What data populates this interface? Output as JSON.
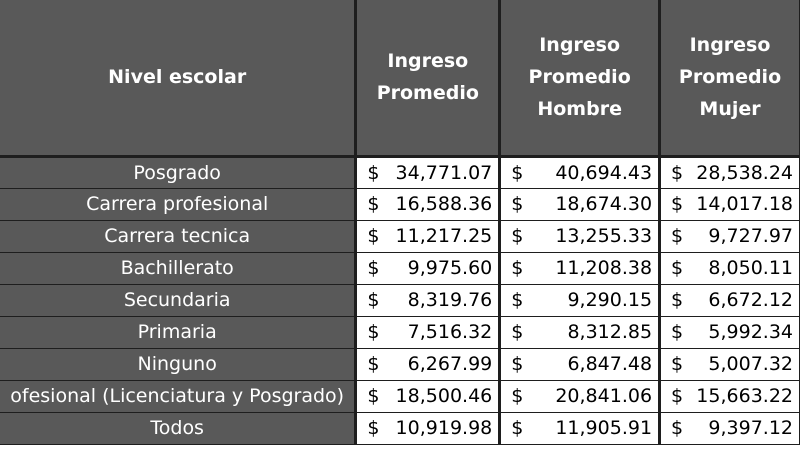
{
  "table": {
    "headers": [
      "Nivel escolar",
      "Ingreso\nPromedio",
      "Ingreso\nPromedio\nHombre",
      "Ingreso\nPromedio\nMujer"
    ],
    "currency_symbol": "$",
    "rows": [
      {
        "level": "Posgrado",
        "avg": "34,771.07",
        "men": "40,694.43",
        "women": "28,538.24"
      },
      {
        "level": "Carrera profesional",
        "avg": "16,588.36",
        "men": "18,674.30",
        "women": "14,017.18"
      },
      {
        "level": "Carrera tecnica",
        "avg": "11,217.25",
        "men": "13,255.33",
        "women": "9,727.97"
      },
      {
        "level": "Bachillerato",
        "avg": "9,975.60",
        "men": "11,208.38",
        "women": "8,050.11"
      },
      {
        "level": "Secundaria",
        "avg": "8,319.76",
        "men": "9,290.15",
        "women": "6,672.12"
      },
      {
        "level": "Primaria",
        "avg": "7,516.32",
        "men": "8,312.85",
        "women": "5,992.34"
      },
      {
        "level": "Ninguno",
        "avg": "6,267.99",
        "men": "6,847.48",
        "women": "5,007.32"
      },
      {
        "level": "ofesional (Licenciatura y Posgrado)",
        "avg": "18,500.46",
        "men": "20,841.06",
        "women": "15,663.22"
      },
      {
        "level": "Todos",
        "avg": "10,919.98",
        "men": "11,905.91",
        "women": "9,397.12"
      }
    ]
  },
  "colors": {
    "header_bg": "#595959",
    "header_text": "#ffffff",
    "border": "#1e1e1e"
  }
}
